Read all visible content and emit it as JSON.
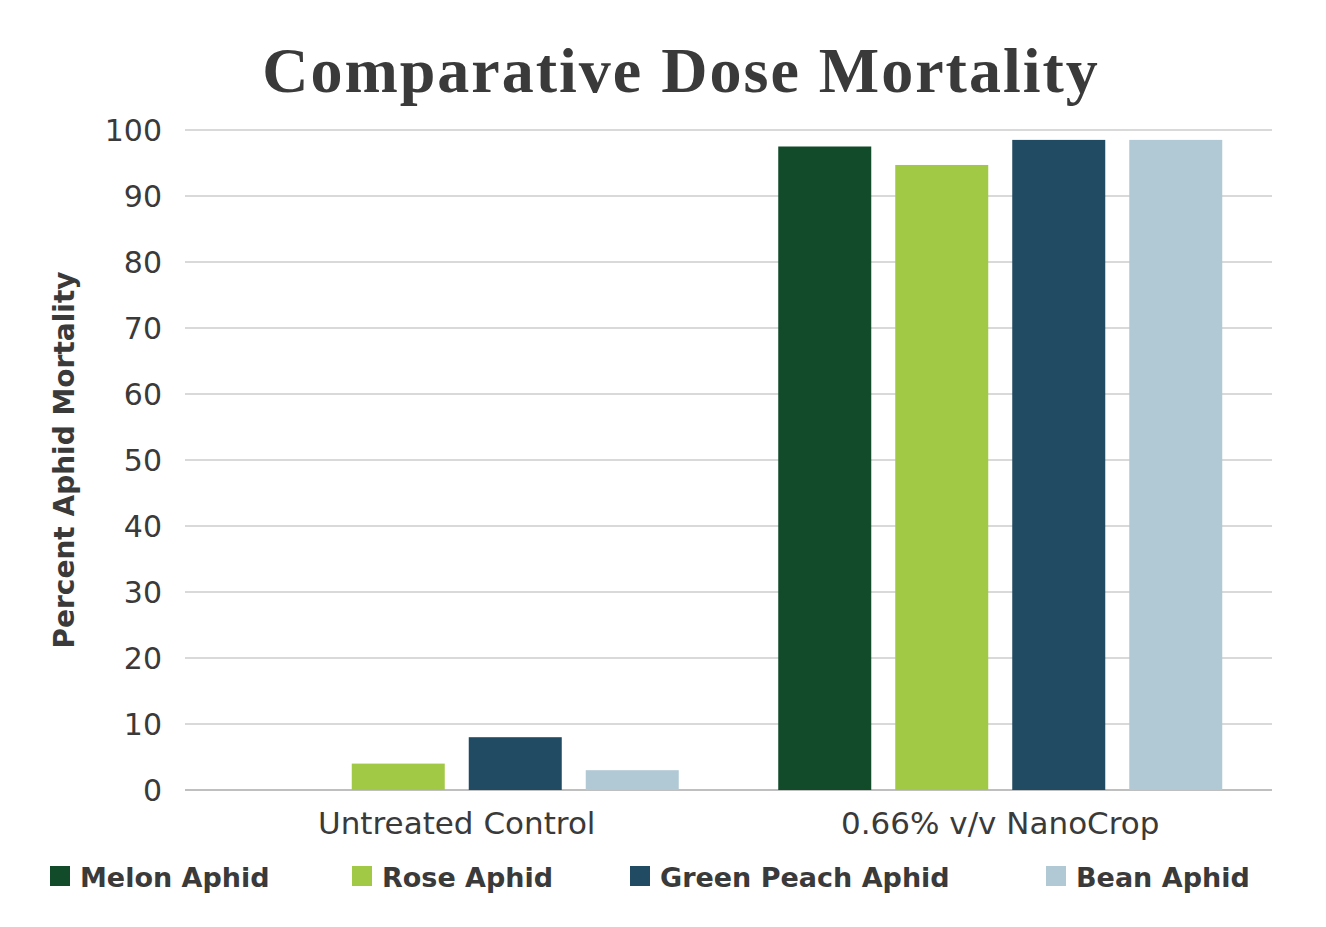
{
  "chart_data": {
    "type": "bar",
    "title": "Comparative Dose Mortality",
    "y_label": "Percent Aphid Mortality",
    "categories": [
      "Untreated Control",
      "0.66% v/v NanoCrop"
    ],
    "series": [
      {
        "name": "Melon Aphid",
        "color": "#114b2a",
        "values": [
          0,
          97.5
        ]
      },
      {
        "name": "Rose Aphid",
        "color": "#a2c945",
        "values": [
          4,
          94.7
        ]
      },
      {
        "name": "Green Peach Aphid",
        "color": "#214b63",
        "values": [
          8,
          98.5
        ]
      },
      {
        "name": "Bean Aphid",
        "color": "#b1c9d4",
        "values": [
          3,
          98.5
        ]
      }
    ],
    "ylim": [
      0,
      100
    ],
    "yticks": [
      0,
      10,
      20,
      30,
      40,
      50,
      60,
      70,
      80,
      90,
      100
    ],
    "grid": true,
    "legend": "bottom"
  }
}
